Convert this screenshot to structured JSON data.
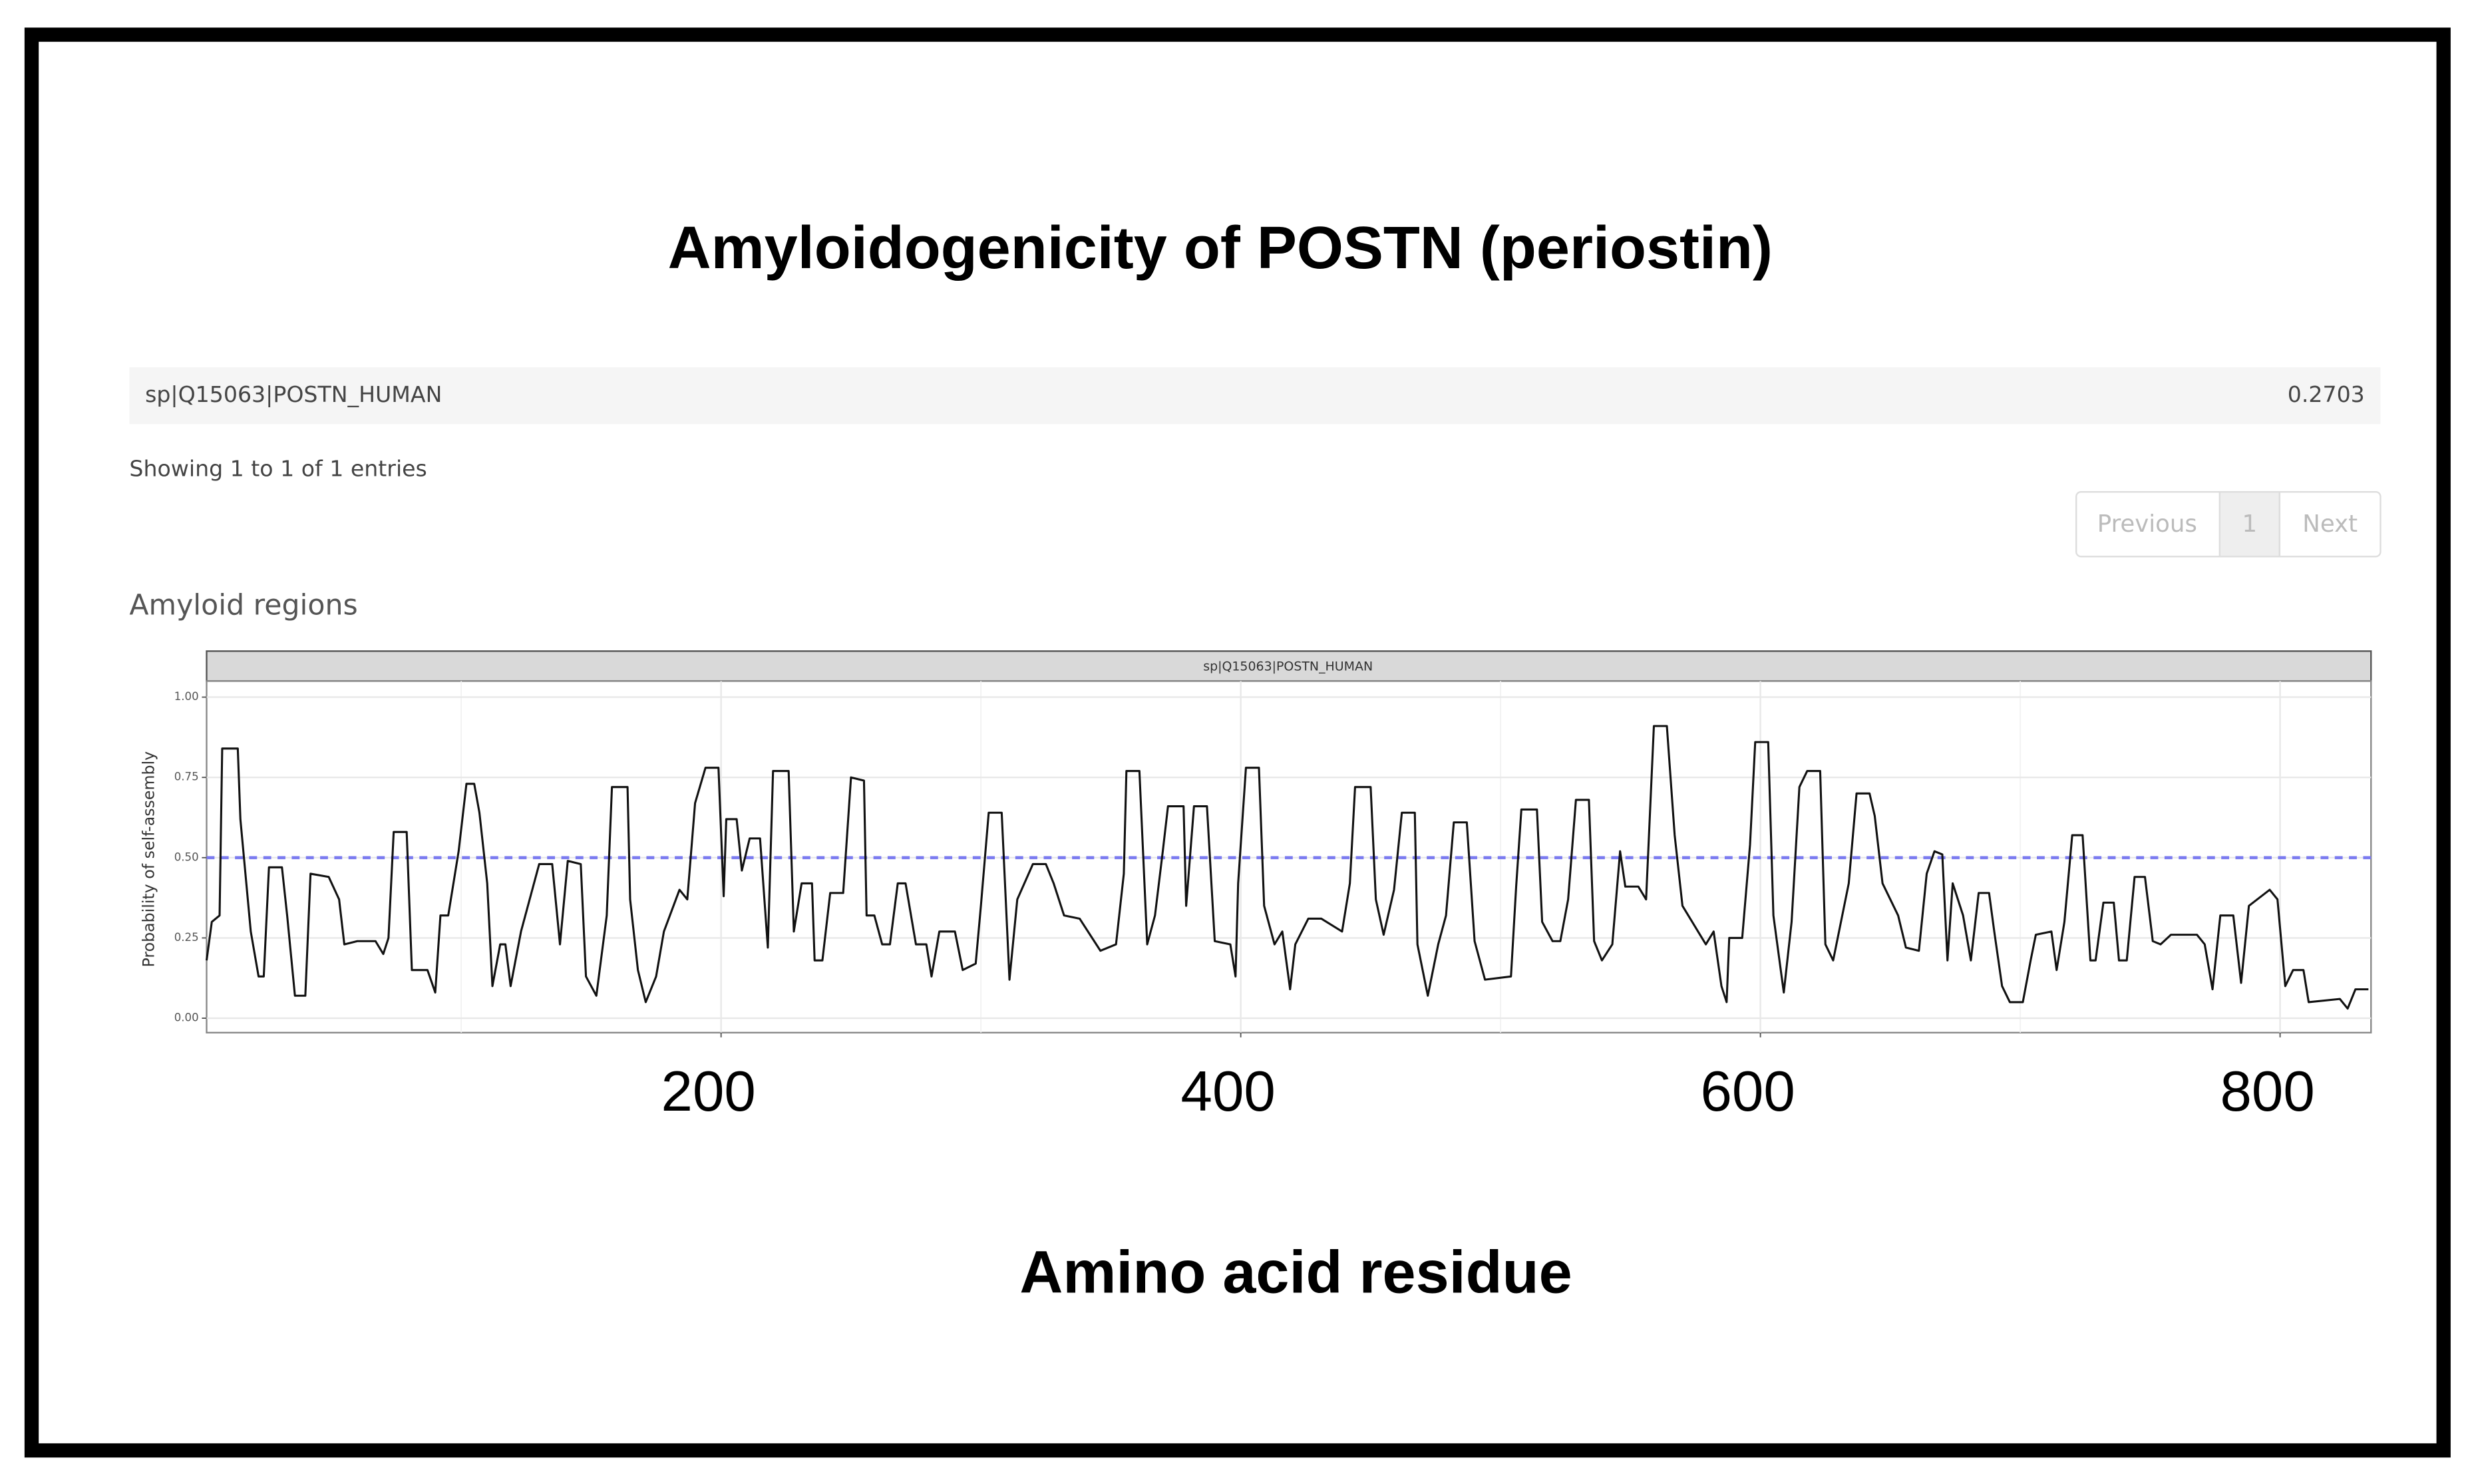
{
  "header": {
    "title": "Amyloidogenicity of POSTN (periostin)"
  },
  "table": {
    "rows": [
      [
        "sp|Q15063|POSTN_HUMAN",
        0.2703
      ]
    ]
  },
  "info": "Showing 1 to 1 of 1 entries",
  "pagination": [
    "Previous",
    "1",
    "Next"
  ],
  "section_title": "Amyloid regions",
  "chart_data": {
    "type": "line",
    "facet_label": "sp|Q15063|POSTN_HUMAN",
    "ylabel": "Probability of self-assembly",
    "xlabel": "Amino acid residue",
    "color": "#111111",
    "x": [
      2,
      4,
      7,
      8,
      14,
      15,
      19,
      22,
      24,
      26,
      31,
      33,
      36,
      40,
      42,
      49,
      53,
      55,
      60,
      67,
      70,
      72,
      74,
      79,
      81,
      87,
      90,
      92,
      95,
      99,
      102,
      105,
      107,
      110,
      112,
      115,
      117,
      119,
      123,
      128,
      130,
      135,
      138,
      141,
      146,
      148,
      152,
      156,
      158,
      164,
      165,
      168,
      171,
      175,
      178,
      184,
      187,
      190,
      194,
      199,
      201,
      202,
      206,
      208,
      211,
      215,
      218,
      220,
      226,
      228,
      231,
      235,
      236,
      239,
      242,
      247,
      250,
      255,
      256,
      259,
      262,
      265,
      268,
      271,
      275,
      279,
      281,
      284,
      290,
      293,
      298,
      300,
      303,
      308,
      311,
      314,
      320,
      325,
      328,
      332,
      338,
      346,
      352,
      355,
      356,
      361,
      364,
      367,
      370,
      372,
      378,
      379,
      382,
      387,
      390,
      396,
      398,
      399,
      402,
      407,
      409,
      413,
      416,
      419,
      421,
      426,
      431,
      439,
      442,
      444,
      450,
      452,
      455,
      459,
      462,
      467,
      468,
      472,
      476,
      479,
      482,
      487,
      490,
      494,
      504,
      506,
      508,
      514,
      516,
      520,
      523,
      526,
      529,
      534,
      536,
      539,
      543,
      546,
      548,
      553,
      556,
      559,
      564,
      567,
      570,
      576,
      579,
      582,
      585,
      587,
      588,
      593,
      596,
      598,
      603,
      605,
      609,
      612,
      615,
      618,
      623,
      625,
      628,
      634,
      637,
      642,
      644,
      647,
      653,
      656,
      661,
      664,
      667,
      670,
      672,
      674,
      678,
      681,
      684,
      688,
      690,
      693,
      696,
      701,
      704,
      706,
      712,
      714,
      717,
      720,
      724,
      727,
      729,
      732,
      736,
      738,
      741,
      744,
      748,
      751,
      754,
      758,
      768,
      771,
      774,
      777,
      782,
      785,
      788,
      796,
      799,
      802,
      805,
      809,
      811,
      823,
      826,
      829,
      834
    ],
    "values": [
      0.18,
      0.3,
      0.32,
      0.84,
      0.84,
      0.62,
      0.27,
      0.13,
      0.13,
      0.47,
      0.47,
      0.32,
      0.07,
      0.07,
      0.45,
      0.44,
      0.37,
      0.23,
      0.24,
      0.24,
      0.2,
      0.25,
      0.58,
      0.58,
      0.15,
      0.15,
      0.08,
      0.32,
      0.32,
      0.52,
      0.73,
      0.73,
      0.64,
      0.42,
      0.1,
      0.23,
      0.23,
      0.1,
      0.27,
      0.42,
      0.48,
      0.48,
      0.23,
      0.49,
      0.48,
      0.13,
      0.07,
      0.32,
      0.72,
      0.72,
      0.37,
      0.15,
      0.05,
      0.13,
      0.27,
      0.4,
      0.37,
      0.67,
      0.78,
      0.78,
      0.38,
      0.62,
      0.62,
      0.46,
      0.56,
      0.56,
      0.22,
      0.77,
      0.77,
      0.27,
      0.42,
      0.42,
      0.18,
      0.18,
      0.39,
      0.39,
      0.75,
      0.74,
      0.32,
      0.32,
      0.23,
      0.23,
      0.42,
      0.42,
      0.23,
      0.23,
      0.13,
      0.27,
      0.27,
      0.15,
      0.17,
      0.35,
      0.64,
      0.64,
      0.12,
      0.37,
      0.48,
      0.48,
      0.42,
      0.32,
      0.31,
      0.21,
      0.23,
      0.45,
      0.77,
      0.77,
      0.23,
      0.32,
      0.52,
      0.66,
      0.66,
      0.35,
      0.66,
      0.66,
      0.24,
      0.23,
      0.13,
      0.42,
      0.78,
      0.78,
      0.35,
      0.23,
      0.27,
      0.09,
      0.23,
      0.31,
      0.31,
      0.27,
      0.42,
      0.72,
      0.72,
      0.37,
      0.26,
      0.4,
      0.64,
      0.64,
      0.23,
      0.07,
      0.23,
      0.32,
      0.61,
      0.61,
      0.24,
      0.12,
      0.13,
      0.41,
      0.65,
      0.65,
      0.3,
      0.24,
      0.24,
      0.37,
      0.68,
      0.68,
      0.24,
      0.18,
      0.23,
      0.52,
      0.41,
      0.41,
      0.37,
      0.91,
      0.91,
      0.57,
      0.35,
      0.27,
      0.23,
      0.27,
      0.1,
      0.05,
      0.25,
      0.25,
      0.54,
      0.86,
      0.86,
      0.32,
      0.08,
      0.3,
      0.72,
      0.77,
      0.77,
      0.23,
      0.18,
      0.42,
      0.7,
      0.7,
      0.63,
      0.42,
      0.32,
      0.22,
      0.21,
      0.45,
      0.52,
      0.51,
      0.18,
      0.42,
      0.32,
      0.18,
      0.39,
      0.39,
      0.27,
      0.1,
      0.05,
      0.05,
      0.18,
      0.26,
      0.27,
      0.15,
      0.3,
      0.57,
      0.57,
      0.18,
      0.18,
      0.36,
      0.36,
      0.18,
      0.18,
      0.44,
      0.44,
      0.24,
      0.23,
      0.26,
      0.26,
      0.23,
      0.09,
      0.32,
      0.32,
      0.11,
      0.35,
      0.4,
      0.37,
      0.1,
      0.15,
      0.15,
      0.05,
      0.06,
      0.03,
      0.09,
      0.09
    ],
    "xlim": [
      2,
      835
    ],
    "xticks": [
      200,
      400,
      600,
      800
    ],
    "x_minor_grid": [
      100,
      300,
      500,
      700
    ],
    "ylim": [
      -0.045,
      1.05
    ],
    "yticks": [
      {
        "value": 0,
        "label": "0.00"
      },
      {
        "value": 0.25,
        "label": "0.25"
      },
      {
        "value": 0.5,
        "label": "0.50"
      },
      {
        "value": 0.75,
        "label": "0.75"
      },
      {
        "value": 1,
        "label": "1.00"
      }
    ],
    "grid": true,
    "threshold": 0.5,
    "threshold_color": "#7b7bf0"
  }
}
